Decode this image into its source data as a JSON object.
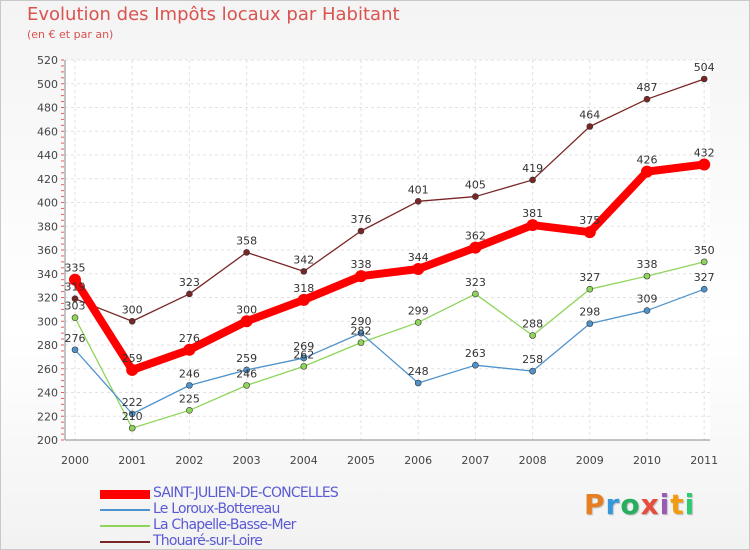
{
  "title": "Evolution des Impôts locaux par Habitant",
  "subtitle": "(en € et par an)",
  "logo_text": "Proxiti",
  "chart_data": {
    "type": "line",
    "title": "Evolution des Impôts locaux par Habitant",
    "subtitle": "(en € et par an)",
    "xlabel": "",
    "ylabel": "",
    "x": [
      "2000",
      "2001",
      "2002",
      "2003",
      "2004",
      "2005",
      "2006",
      "2007",
      "2008",
      "2009",
      "2010",
      "2011"
    ],
    "ylim": [
      200,
      520
    ],
    "yticks": [
      "200",
      "220",
      "240",
      "260",
      "280",
      "300",
      "320",
      "340",
      "360",
      "380",
      "400",
      "420",
      "440",
      "460",
      "480",
      "500",
      "520"
    ],
    "grid": true,
    "legend_position": "bottom-left",
    "series": [
      {
        "name": "Thouaré-sur-Loire",
        "color": "#7a2626",
        "values": [
          319,
          300,
          323,
          358,
          342,
          376,
          401,
          405,
          419,
          464,
          487,
          504
        ],
        "labels": [
          "319",
          "300",
          "323",
          "358",
          "342",
          "376",
          "401",
          "405",
          "419",
          "464",
          "487",
          "504"
        ]
      },
      {
        "name": "La Chapelle-Basse-Mer",
        "color": "#8ed55a",
        "values": [
          303,
          210,
          225,
          246,
          262,
          282,
          299,
          323,
          288,
          327,
          338,
          350
        ],
        "labels": [
          "303",
          "210",
          "225",
          "246",
          "262",
          "282",
          "299",
          "323",
          "288",
          "327",
          "338",
          "350"
        ]
      },
      {
        "name": "Le Loroux-Bottereau",
        "color": "#4f93cc",
        "values": [
          276,
          222,
          246,
          259,
          269,
          290,
          248,
          263,
          258,
          298,
          309,
          327
        ],
        "labels": [
          "276",
          "222",
          "246",
          "259",
          "269",
          "290",
          "248",
          "263",
          "258",
          "298",
          "309",
          "327"
        ]
      },
      {
        "name": "SAINT-JULIEN-DE-CONCELLES",
        "color": "#ff0000",
        "values": [
          335,
          259,
          276,
          300,
          318,
          338,
          344,
          362,
          381,
          375,
          426,
          432
        ],
        "labels": [
          "335",
          "259",
          "276",
          "300",
          "318",
          "338",
          "344",
          "362",
          "381",
          "375",
          "426",
          "432"
        ]
      }
    ],
    "legend_order": [
      "SAINT-JULIEN-DE-CONCELLES",
      "Le Loroux-Bottereau",
      "La Chapelle-Basse-Mer",
      "Thouaré-sur-Loire"
    ]
  }
}
